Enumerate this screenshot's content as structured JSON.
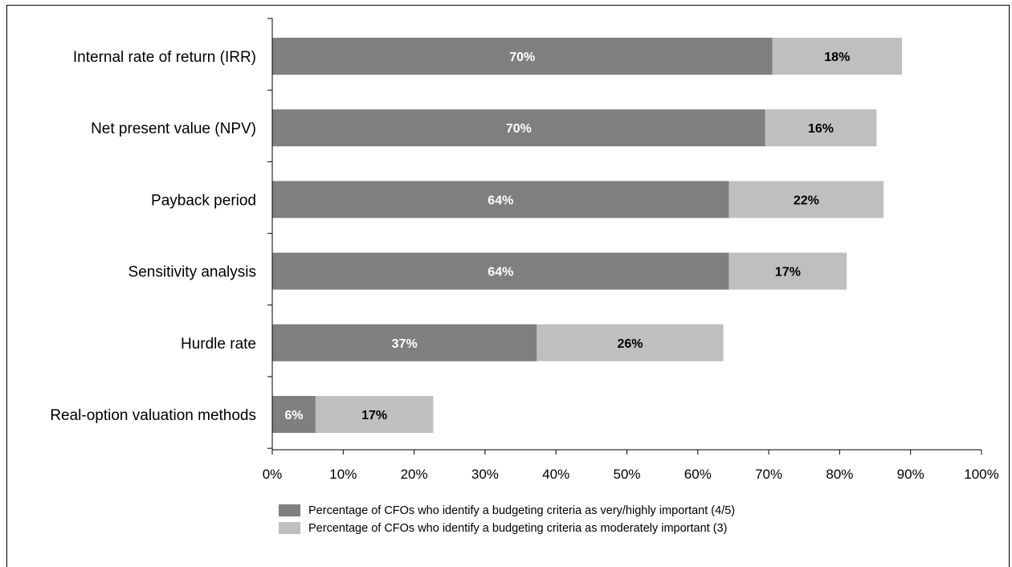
{
  "chart_data": {
    "type": "bar",
    "orientation": "horizontal",
    "stacked": true,
    "categories": [
      "Internal rate of return (IRR)",
      "Net present value (NPV)",
      "Payback period",
      "Sensitivity analysis",
      "Hurdle rate",
      "Real-option valuation methods"
    ],
    "series": [
      {
        "name": "Percentage of CFOs who identify a budgeting criteria as very/highly important (4/5)",
        "values": [
          70.5,
          69.5,
          64.4,
          64.4,
          37.3,
          6.1
        ],
        "labels": [
          "70%",
          "70%",
          "64%",
          "64%",
          "37%",
          "6%"
        ],
        "color": "#7f7f7f"
      },
      {
        "name": "Percentage of CFOs who identify a budgeting criteria as moderately important (3)",
        "values": [
          18.3,
          15.7,
          21.8,
          16.6,
          26.3,
          16.6
        ],
        "labels": [
          "18%",
          "16%",
          "22%",
          "17%",
          "26%",
          "17%"
        ],
        "color": "#bfbfbf"
      }
    ],
    "xticks": [
      "0%",
      "10%",
      "20%",
      "30%",
      "40%",
      "50%",
      "60%",
      "70%",
      "80%",
      "90%",
      "100%"
    ],
    "xlim": [
      0,
      100
    ],
    "title": "",
    "xlabel": "",
    "ylabel": "",
    "grid": false,
    "legend_position": "bottom"
  }
}
